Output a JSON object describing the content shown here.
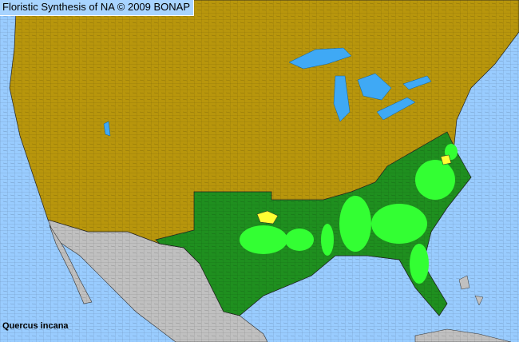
{
  "header": {
    "title": "Floristic Synthesis of NA © 2009 BONAP"
  },
  "map": {
    "species": "Quercus incana",
    "colors": {
      "ocean": "#99ccff",
      "present_not_native_state": "#b8960c",
      "native_state": "#1f8f1f",
      "county_present": "#33ff33",
      "county_rare": "#ffff33",
      "outside_area": "#c0c0c0",
      "lakes": "#3fa9f5"
    }
  }
}
